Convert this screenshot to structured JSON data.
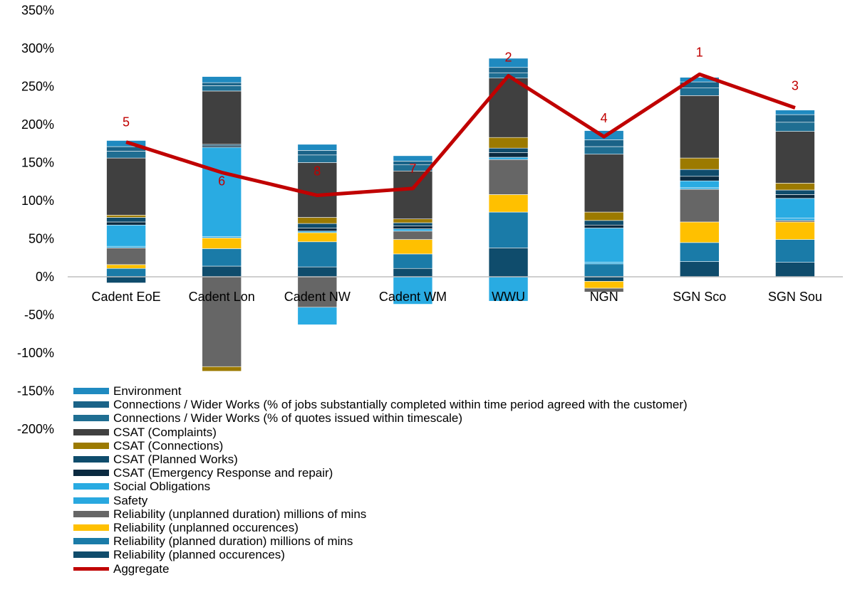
{
  "chart_data": {
    "type": "bar",
    "stacked": true,
    "categories": [
      "Cadent EoE",
      "Cadent Lon",
      "Cadent NW",
      "Cadent WM",
      "WWU",
      "NGN",
      "SGN Sco",
      "SGN Sou"
    ],
    "y_tick_labels": [
      "350%",
      "300%",
      "250%",
      "200%",
      "150%",
      "100%",
      "50%",
      "0%",
      "-50%",
      "-100%",
      "-150%",
      "-200%"
    ],
    "ylim": [
      -200,
      350
    ],
    "y_unit": "%",
    "grid": false,
    "legend_position": "bottom",
    "series": [
      {
        "name": "Reliability (planned occurences)",
        "color": "#0f4c6c",
        "values": [
          -8,
          14,
          13,
          11,
          38,
          -6,
          20,
          19
        ]
      },
      {
        "name": "Reliability (planned duration) millions of mins",
        "color": "#1a7ba8",
        "values": [
          11,
          23,
          33,
          19,
          47,
          17,
          25,
          30
        ]
      },
      {
        "name": "Reliability (unplanned occurences)",
        "color": "#ffc000",
        "values": [
          5,
          14,
          12,
          19,
          23,
          -9,
          27,
          23
        ]
      },
      {
        "name": "Reliability (unplanned duration) millions of mins",
        "color": "#666666",
        "values": [
          22,
          -118,
          -40,
          11,
          46,
          -5,
          43,
          2
        ]
      },
      {
        "name": "Safety",
        "color": "#29a8df",
        "values": [
          2,
          2,
          2,
          3,
          3,
          2,
          2,
          3
        ]
      },
      {
        "name": "Social Obligations",
        "color": "#29abe2",
        "values": [
          28,
          117,
          -23,
          -36,
          -32,
          45,
          9,
          26
        ]
      },
      {
        "name": "CSAT (Emergency Response and repair)",
        "color": "#0a2a40",
        "values": [
          4,
          2,
          4,
          4,
          6,
          4,
          6,
          5
        ]
      },
      {
        "name": "CSAT (Planned Works)",
        "color": "#0f4c6c",
        "values": [
          6,
          2,
          6,
          4,
          6,
          6,
          9,
          6
        ]
      },
      {
        "name": "CSAT (Connections)",
        "color": "#9c7a00",
        "values": [
          3,
          -6,
          8,
          5,
          14,
          11,
          15,
          9
        ]
      },
      {
        "name": "CSAT (Complaints)",
        "color": "#404040",
        "values": [
          75,
          70,
          72,
          63,
          78,
          76,
          82,
          68
        ]
      },
      {
        "name": "Connections / Wider Works (% of quotes issued within timescale)",
        "color": "#1f6e92",
        "values": [
          9,
          7,
          10,
          8,
          7,
          10,
          10,
          12
        ]
      },
      {
        "name": "Connections / Wider Works (% of jobs substantially completed within time period agreed with the customer)",
        "color": "#1a6388",
        "values": [
          6,
          4,
          6,
          5,
          7,
          9,
          8,
          10
        ]
      },
      {
        "name": "Environment",
        "color": "#1f8ac0",
        "values": [
          8,
          8,
          8,
          7,
          12,
          12,
          6,
          6
        ]
      }
    ],
    "line_series": {
      "name": "Aggregate",
      "color": "#c00000",
      "values": [
        177,
        137,
        107,
        116,
        264,
        184,
        266,
        222
      ]
    },
    "rank_labels": [
      "5",
      "6",
      "8",
      "7",
      "2",
      "4",
      "1",
      "3"
    ]
  },
  "legend_items": [
    {
      "label": "Environment",
      "color": "#1f8ac0",
      "kind": "bar"
    },
    {
      "label": "Connections / Wider Works (% of jobs substantially completed within time period agreed with the customer)",
      "color": "#1a6388",
      "kind": "bar"
    },
    {
      "label": "Connections / Wider Works (% of quotes issued within timescale)",
      "color": "#1f6e92",
      "kind": "bar"
    },
    {
      "label": "CSAT (Complaints)",
      "color": "#404040",
      "kind": "bar"
    },
    {
      "label": "CSAT (Connections)",
      "color": "#9c7a00",
      "kind": "bar"
    },
    {
      "label": "CSAT (Planned Works)",
      "color": "#0f4c6c",
      "kind": "bar"
    },
    {
      "label": "CSAT (Emergency Response and repair)",
      "color": "#0a2a40",
      "kind": "bar"
    },
    {
      "label": "Social Obligations",
      "color": "#29abe2",
      "kind": "bar"
    },
    {
      "label": "Safety",
      "color": "#29a8df",
      "kind": "bar"
    },
    {
      "label": "Reliability (unplanned duration) millions of mins",
      "color": "#666666",
      "kind": "bar"
    },
    {
      "label": "Reliability (unplanned occurences)",
      "color": "#ffc000",
      "kind": "bar"
    },
    {
      "label": "Reliability (planned duration) millions of mins",
      "color": "#1a7ba8",
      "kind": "bar"
    },
    {
      "label": "Reliability (planned occurences)",
      "color": "#0f4c6c",
      "kind": "bar"
    },
    {
      "label": "Aggregate",
      "color": "#c00000",
      "kind": "line"
    }
  ]
}
